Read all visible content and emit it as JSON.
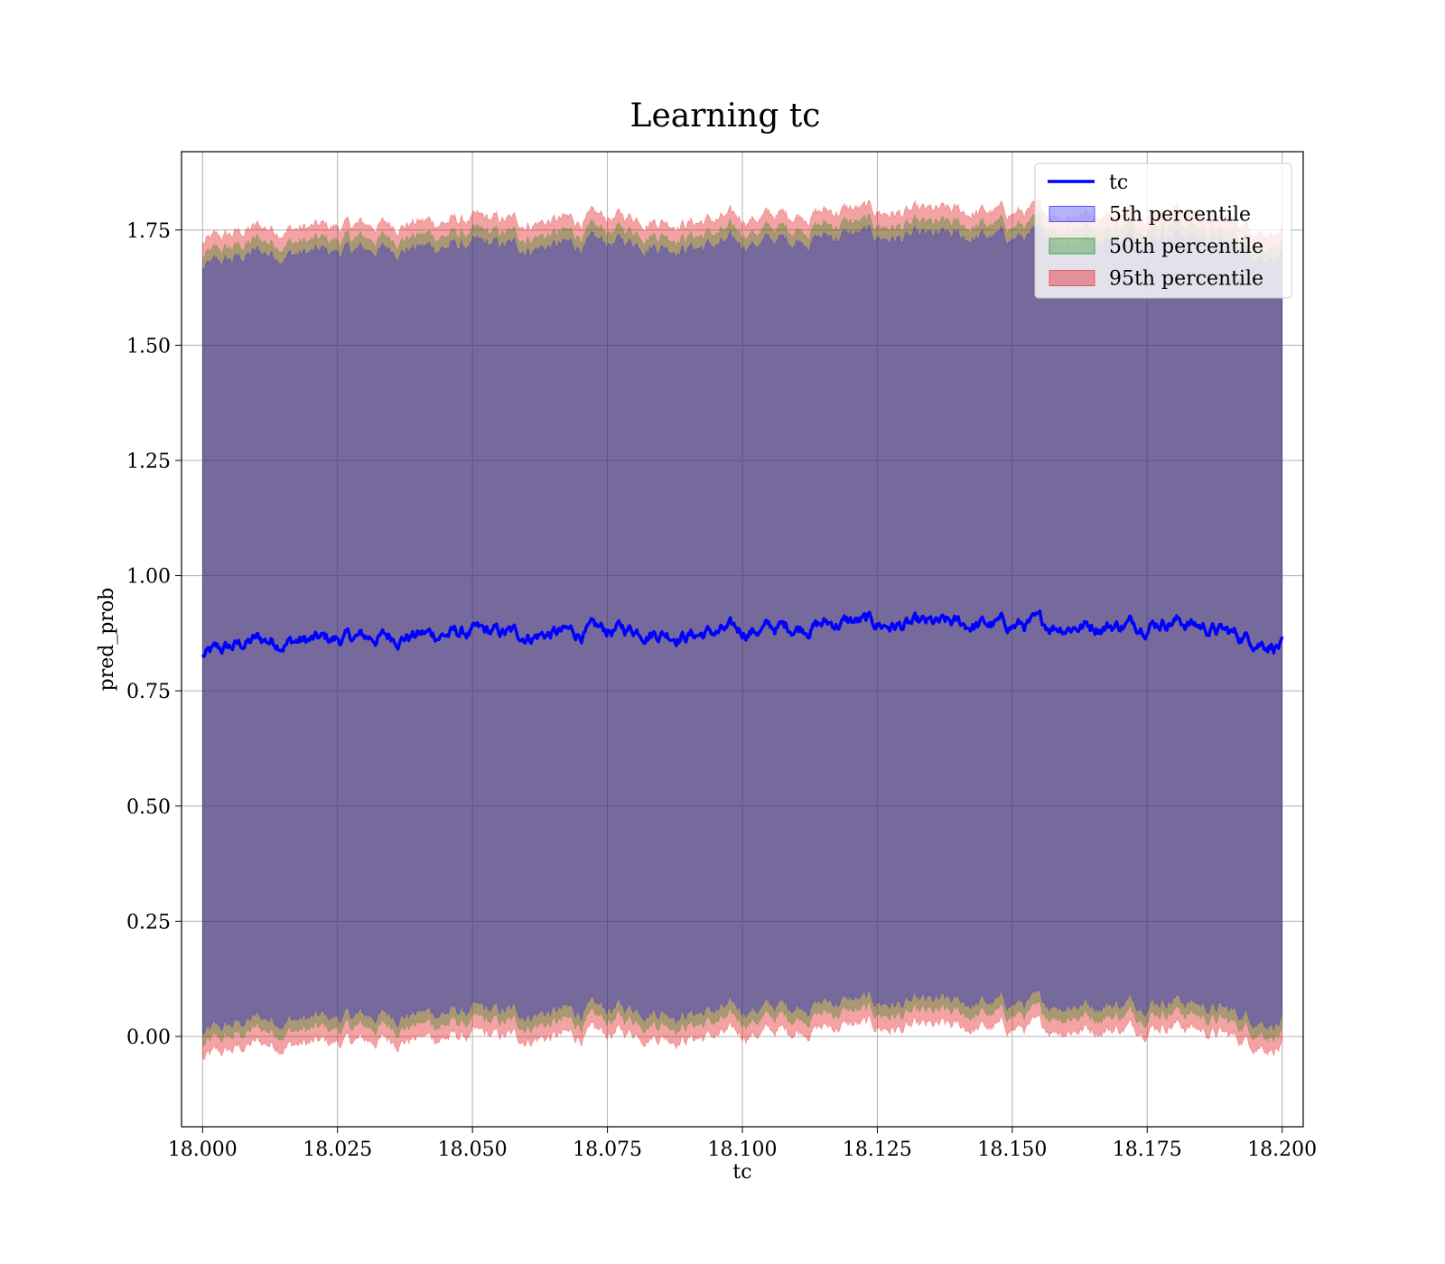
{
  "chart_data": {
    "type": "area",
    "title": "Learning tc",
    "xlabel": "tc",
    "ylabel": "pred_prob",
    "xlim": [
      17.9961,
      18.2039
    ],
    "ylim": [
      -0.196,
      1.92
    ],
    "xticks": [
      18.0,
      18.025,
      18.05,
      18.075,
      18.1,
      18.125,
      18.15,
      18.175,
      18.2
    ],
    "xtick_labels": [
      "18.000",
      "18.025",
      "18.050",
      "18.075",
      "18.100",
      "18.125",
      "18.150",
      "18.175",
      "18.200"
    ],
    "yticks": [
      0.0,
      0.25,
      0.5,
      0.75,
      1.0,
      1.25,
      1.5,
      1.75
    ],
    "ytick_labels": [
      "0.00",
      "0.25",
      "0.50",
      "0.75",
      "1.00",
      "1.25",
      "1.50",
      "1.75"
    ],
    "grid": true,
    "legend_position": "top-right",
    "x_start": 18.0,
    "x_end": 18.2,
    "trend": {
      "x": [
        18.0,
        18.01,
        18.02,
        18.03,
        18.04,
        18.05,
        18.06,
        18.07,
        18.08,
        18.09,
        18.1,
        18.11,
        18.12,
        18.13,
        18.14,
        18.15,
        18.16,
        18.17,
        18.18,
        18.19,
        18.2
      ],
      "y": [
        0.825,
        0.86,
        0.858,
        0.865,
        0.872,
        0.875,
        0.872,
        0.876,
        0.885,
        0.872,
        0.88,
        0.89,
        0.9,
        0.89,
        0.893,
        0.893,
        0.893,
        0.893,
        0.905,
        0.875,
        0.85
      ]
    },
    "series": [
      {
        "name": "tc",
        "kind": "line",
        "color": "#0000ff"
      },
      {
        "name": "5th percentile",
        "kind": "band",
        "color": "#0000ff",
        "opacity": 0.3,
        "lower_offset": -0.82,
        "upper_offset": 0.84
      },
      {
        "name": "50th percentile",
        "kind": "band",
        "color": "#008000",
        "opacity": 0.3,
        "lower_offset": -0.845,
        "upper_offset": 0.865
      },
      {
        "name": "95th percentile",
        "kind": "band",
        "color": "#e31a1c",
        "opacity": 0.4,
        "lower_offset": -0.875,
        "upper_offset": 0.895
      }
    ]
  }
}
